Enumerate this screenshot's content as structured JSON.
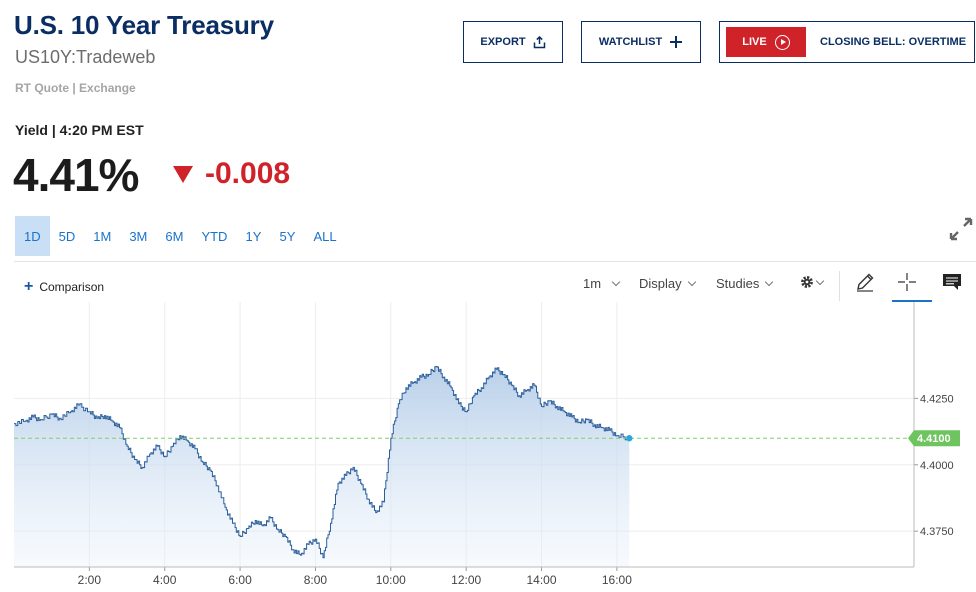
{
  "header": {
    "title": "U.S. 10 Year Treasury",
    "symbol": "US10Y:Tradeweb",
    "quote_meta": "RT Quote | Exchange"
  },
  "actions": {
    "export_label": "EXPORT",
    "watchlist_label": "WATCHLIST",
    "live_label": "LIVE",
    "closing_bell_label": "CLOSING BELL: OVERTIME"
  },
  "quote": {
    "yield_label": "Yield | 4:20 PM EST",
    "last": "4.41%",
    "change": "-0.008"
  },
  "ranges": [
    "1D",
    "5D",
    "1M",
    "3M",
    "6M",
    "YTD",
    "1Y",
    "5Y",
    "ALL"
  ],
  "active_range": "1D",
  "toolbar": {
    "comparison_label": "Comparison",
    "interval_label": "1m",
    "display_label": "Display",
    "studies_label": "Studies"
  },
  "icons": {
    "export": "share-upload-icon",
    "watchlist": "plus-icon",
    "live": "play-circle-icon",
    "expand": "expand-arrows-icon",
    "settings": "gear-icon",
    "draw": "pencil-icon",
    "crosshair": "crosshair-icon",
    "comments": "comment-icon"
  },
  "colors": {
    "brand": "#0a2d63",
    "negative": "#cf2229",
    "accent": "#1a73c9",
    "range_active_bg": "#c8dff5",
    "line": "#2b5f9b",
    "fill_top": "#b5cde8",
    "reference": "#7fd06f",
    "price_tag": "#6ec55f"
  },
  "chart_data": {
    "type": "area",
    "x_unit": "hour",
    "x_ticks": [
      "2:00",
      "4:00",
      "6:00",
      "8:00",
      "10:00",
      "12:00",
      "14:00",
      "16:00"
    ],
    "x_range": [
      0.0,
      24.0
    ],
    "y_ticks": [
      "4.3750",
      "4.4000",
      "4.4250"
    ],
    "y_range": [
      4.3615,
      4.4613
    ],
    "last_price_tag": "4.4100",
    "reference_line": 4.41,
    "grid": true,
    "series": [
      {
        "points": [
          [
            0.0,
            4.4155
          ],
          [
            0.3,
            4.4165
          ],
          [
            0.5,
            4.418
          ],
          [
            0.7,
            4.417
          ],
          [
            1.0,
            4.419
          ],
          [
            1.2,
            4.4175
          ],
          [
            1.5,
            4.42
          ],
          [
            1.7,
            4.4225
          ],
          [
            2.0,
            4.42
          ],
          [
            2.2,
            4.4175
          ],
          [
            2.4,
            4.4185
          ],
          [
            2.6,
            4.4165
          ],
          [
            2.8,
            4.414
          ],
          [
            3.0,
            4.407
          ],
          [
            3.2,
            4.402
          ],
          [
            3.4,
            4.399
          ],
          [
            3.6,
            4.404
          ],
          [
            3.8,
            4.407
          ],
          [
            4.0,
            4.403
          ],
          [
            4.2,
            4.407
          ],
          [
            4.4,
            4.411
          ],
          [
            4.6,
            4.409
          ],
          [
            4.8,
            4.406
          ],
          [
            5.0,
            4.401
          ],
          [
            5.2,
            4.398
          ],
          [
            5.4,
            4.392
          ],
          [
            5.6,
            4.384
          ],
          [
            5.8,
            4.378
          ],
          [
            6.0,
            4.373
          ],
          [
            6.2,
            4.376
          ],
          [
            6.4,
            4.379
          ],
          [
            6.6,
            4.377
          ],
          [
            6.8,
            4.38
          ],
          [
            7.0,
            4.3755
          ],
          [
            7.2,
            4.373
          ],
          [
            7.4,
            4.368
          ],
          [
            7.6,
            4.366
          ],
          [
            7.8,
            4.37
          ],
          [
            8.0,
            4.372
          ],
          [
            8.2,
            4.365
          ],
          [
            8.4,
            4.378
          ],
          [
            8.6,
            4.393
          ],
          [
            8.8,
            4.396
          ],
          [
            9.0,
            4.399
          ],
          [
            9.2,
            4.393
          ],
          [
            9.4,
            4.387
          ],
          [
            9.6,
            4.382
          ],
          [
            9.8,
            4.386
          ],
          [
            10.0,
            4.41
          ],
          [
            10.2,
            4.423
          ],
          [
            10.4,
            4.429
          ],
          [
            10.6,
            4.431
          ],
          [
            10.8,
            4.433
          ],
          [
            11.0,
            4.434
          ],
          [
            11.2,
            4.437
          ],
          [
            11.4,
            4.433
          ],
          [
            11.6,
            4.429
          ],
          [
            11.8,
            4.423
          ],
          [
            12.0,
            4.42
          ],
          [
            12.2,
            4.426
          ],
          [
            12.4,
            4.429
          ],
          [
            12.6,
            4.433
          ],
          [
            12.8,
            4.436
          ],
          [
            13.0,
            4.434
          ],
          [
            13.2,
            4.43
          ],
          [
            13.4,
            4.426
          ],
          [
            13.6,
            4.428
          ],
          [
            13.8,
            4.43
          ],
          [
            14.0,
            4.422
          ],
          [
            14.2,
            4.424
          ],
          [
            14.4,
            4.422
          ],
          [
            14.6,
            4.42
          ],
          [
            14.8,
            4.418
          ],
          [
            15.0,
            4.416
          ],
          [
            15.2,
            4.417
          ],
          [
            15.4,
            4.415
          ],
          [
            15.6,
            4.414
          ],
          [
            15.8,
            4.413
          ],
          [
            16.0,
            4.411
          ],
          [
            16.33,
            4.41
          ]
        ]
      }
    ]
  }
}
